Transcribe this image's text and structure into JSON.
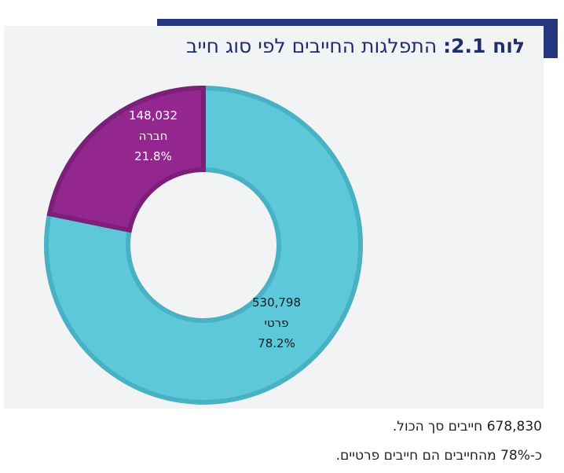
{
  "title": {
    "prefix": "לוח 2.1:",
    "text": "התפלגות החייבים לפי סוג חייב"
  },
  "chart_data": {
    "type": "pie",
    "variant": "donut",
    "title": "התפלגות החייבים לפי סוג חייב",
    "slices": [
      {
        "label": "פרטי",
        "value": 530798,
        "value_label": "530,798",
        "percent": 78.2,
        "percent_label": "78.2%",
        "color": "#5cc8da",
        "stroke": "#48b2c4"
      },
      {
        "label": "חברה",
        "value": 148032,
        "value_label": "148,032",
        "percent": 21.8,
        "percent_label": "21.8%",
        "color": "#93278f",
        "stroke": "#7b1f78"
      }
    ]
  },
  "notes": [
    "678,830 חייבים סך הכול.",
    "כ-78% מהחייבים הם חייבים פרטיים."
  ]
}
